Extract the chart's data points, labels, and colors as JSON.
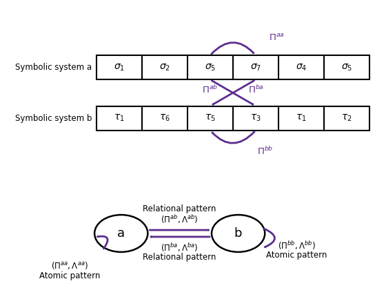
{
  "bg_color": "#ffffff",
  "purple": "#5B2D8E",
  "system_a_label": "Symbolic system a",
  "system_b_label": "Symbolic system b",
  "sys_a_labels": [
    "$\\sigma_1$",
    "$\\sigma_2$",
    "$\\sigma_5$",
    "$\\sigma_7$",
    "$\\sigma_4$",
    "$\\sigma_5$"
  ],
  "sys_b_labels": [
    "$\\tau_1$",
    "$\\tau_6$",
    "$\\tau_5$",
    "$\\tau_3$",
    "$\\tau_1$",
    "$\\tau_2$"
  ]
}
